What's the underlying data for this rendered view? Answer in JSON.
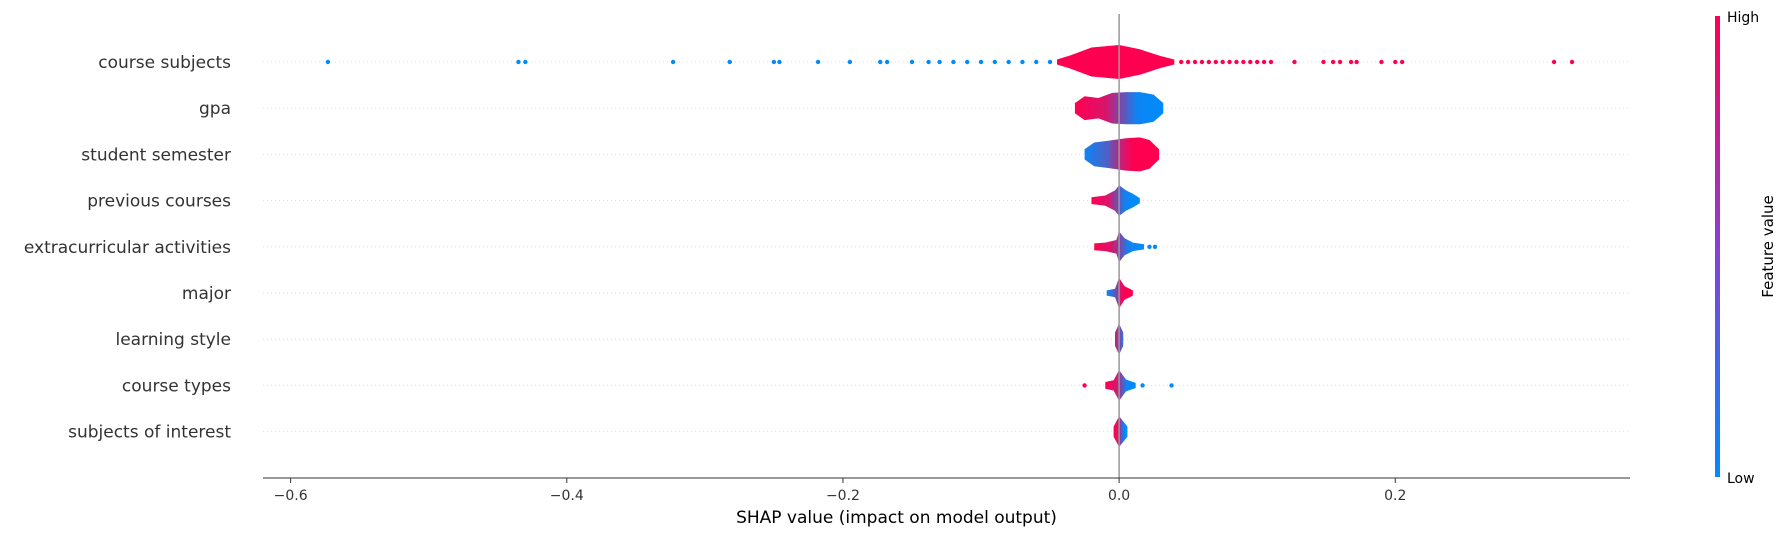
{
  "chart_data": {
    "type": "scatter",
    "subtype": "shap-violin-summary",
    "title": "",
    "xlabel": "SHAP value (impact on model output)",
    "ylabel": "",
    "xlim": [
      -0.62,
      0.37
    ],
    "xticks": [
      -0.6,
      -0.4,
      -0.2,
      0.0,
      0.2
    ],
    "xtick_labels": [
      "−0.6",
      "−0.4",
      "−0.2",
      "0.0",
      "0.2"
    ],
    "grid": false,
    "colorbar": {
      "title": "Feature value",
      "high_label": "High",
      "low_label": "Low",
      "low_color": "#008bfb",
      "high_color": "#ff0051"
    },
    "features": [
      {
        "name": "course subjects",
        "violin_range": [
          -0.045,
          0.04
        ],
        "violin_width": [
          [
            -0.045,
            0.15
          ],
          [
            -0.035,
            0.4
          ],
          [
            -0.02,
            0.85
          ],
          [
            0.0,
            1.0
          ],
          [
            0.015,
            0.75
          ],
          [
            0.03,
            0.35
          ],
          [
            0.04,
            0.15
          ]
        ],
        "color_split": 0.0,
        "outliers_low": [
          -0.573,
          -0.435,
          -0.43,
          -0.323,
          -0.282,
          -0.25,
          -0.246,
          -0.218,
          -0.195,
          -0.173,
          -0.168,
          -0.15,
          -0.138,
          -0.13,
          -0.12,
          -0.11,
          -0.1,
          -0.09,
          -0.08,
          -0.07,
          -0.06,
          -0.05
        ],
        "outliers_high": [
          0.045,
          0.05,
          0.055,
          0.06,
          0.065,
          0.07,
          0.075,
          0.08,
          0.085,
          0.09,
          0.095,
          0.1,
          0.105,
          0.11,
          0.127,
          0.148,
          0.155,
          0.16,
          0.168,
          0.172,
          0.19,
          0.2,
          0.205,
          0.315,
          0.328
        ]
      },
      {
        "name": "gpa",
        "violin_range": [
          -0.032,
          0.032
        ],
        "violin_width": [
          [
            -0.032,
            0.3
          ],
          [
            -0.025,
            0.7
          ],
          [
            -0.015,
            0.6
          ],
          [
            -0.005,
            0.9
          ],
          [
            0.005,
            0.95
          ],
          [
            0.015,
            0.95
          ],
          [
            0.025,
            0.8
          ],
          [
            0.032,
            0.3
          ]
        ],
        "color_split": "high-left"
      },
      {
        "name": "student semester",
        "violin_range": [
          -0.025,
          0.029
        ],
        "violin_width": [
          [
            -0.025,
            0.3
          ],
          [
            -0.018,
            0.7
          ],
          [
            -0.008,
            0.8
          ],
          [
            0.005,
            0.95
          ],
          [
            0.015,
            1.0
          ],
          [
            0.022,
            0.85
          ],
          [
            0.029,
            0.3
          ]
        ],
        "color_split": "low-left"
      },
      {
        "name": "previous courses",
        "violin_range": [
          -0.02,
          0.015
        ],
        "violin_width": [
          [
            -0.02,
            0.2
          ],
          [
            -0.01,
            0.3
          ],
          [
            -0.003,
            0.6
          ],
          [
            0.0,
            0.9
          ],
          [
            0.005,
            0.6
          ],
          [
            0.01,
            0.4
          ],
          [
            0.015,
            0.15
          ]
        ],
        "color_split": "high-left"
      },
      {
        "name": "extracurricular activities",
        "violin_range": [
          -0.018,
          0.018
        ],
        "violin_width": [
          [
            -0.018,
            0.2
          ],
          [
            -0.01,
            0.25
          ],
          [
            -0.002,
            0.4
          ],
          [
            0.0,
            0.9
          ],
          [
            0.004,
            0.5
          ],
          [
            0.01,
            0.25
          ],
          [
            0.018,
            0.15
          ]
        ],
        "color_split": "high-left",
        "outliers_high": [
          0.022,
          0.026
        ]
      },
      {
        "name": "major",
        "violin_range": [
          -0.009,
          0.01
        ],
        "violin_width": [
          [
            -0.009,
            0.15
          ],
          [
            -0.003,
            0.25
          ],
          [
            0.0,
            0.9
          ],
          [
            0.004,
            0.4
          ],
          [
            0.01,
            0.15
          ]
        ],
        "color_split": "low-left"
      },
      {
        "name": "learning style",
        "violin_range": [
          -0.003,
          0.003
        ],
        "violin_width": [
          [
            -0.003,
            0.4
          ],
          [
            0.0,
            0.9
          ],
          [
            0.003,
            0.4
          ]
        ],
        "color_split": "mixed"
      },
      {
        "name": "course types",
        "violin_range": [
          -0.01,
          0.012
        ],
        "violin_width": [
          [
            -0.01,
            0.2
          ],
          [
            -0.004,
            0.3
          ],
          [
            0.0,
            0.9
          ],
          [
            0.005,
            0.35
          ],
          [
            0.012,
            0.15
          ]
        ],
        "color_split": "high-left",
        "outliers_low": [
          -0.025
        ],
        "outliers_high": [
          0.017,
          0.038
        ]
      },
      {
        "name": "subjects of interest",
        "violin_range": [
          -0.004,
          0.006
        ],
        "violin_width": [
          [
            -0.004,
            0.3
          ],
          [
            0.0,
            0.9
          ],
          [
            0.006,
            0.3
          ]
        ],
        "color_split": "high-left"
      }
    ]
  }
}
